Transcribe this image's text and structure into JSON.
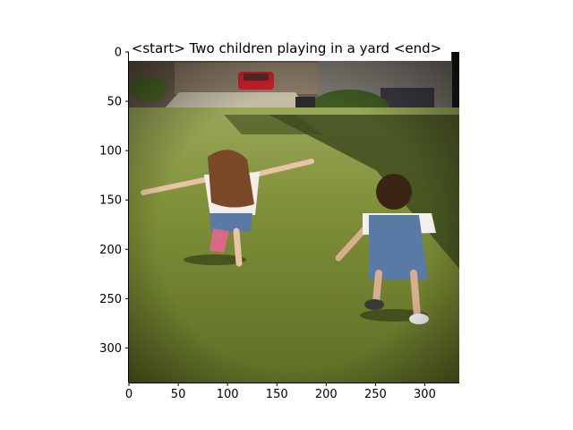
{
  "figure": {
    "title": "<start> Two children playing in a yard <end>",
    "image_description_icon": "photo-two-children-running-on-lawn-icon"
  },
  "chart_data": {
    "type": "image",
    "title": "<start> Two children playing in a yard <end>",
    "xlabel": "",
    "ylabel": "",
    "xlim": [
      0,
      335
    ],
    "ylim": [
      335,
      0
    ],
    "xticks": [
      0,
      50,
      100,
      150,
      200,
      250,
      300
    ],
    "yticks": [
      0,
      50,
      100,
      150,
      200,
      250,
      300
    ],
    "grid": false
  },
  "colors": {
    "grass_light": "#8a9a3a",
    "grass_dark": "#4c5a1f",
    "shadow": "#2f3a16",
    "house": "#7a6a5a",
    "car": "#c8202a",
    "shirt": "#f2f2f2",
    "denim": "#5a7aa6",
    "hair_girl": "#7a4a28",
    "hair_boy": "#3a2414"
  }
}
